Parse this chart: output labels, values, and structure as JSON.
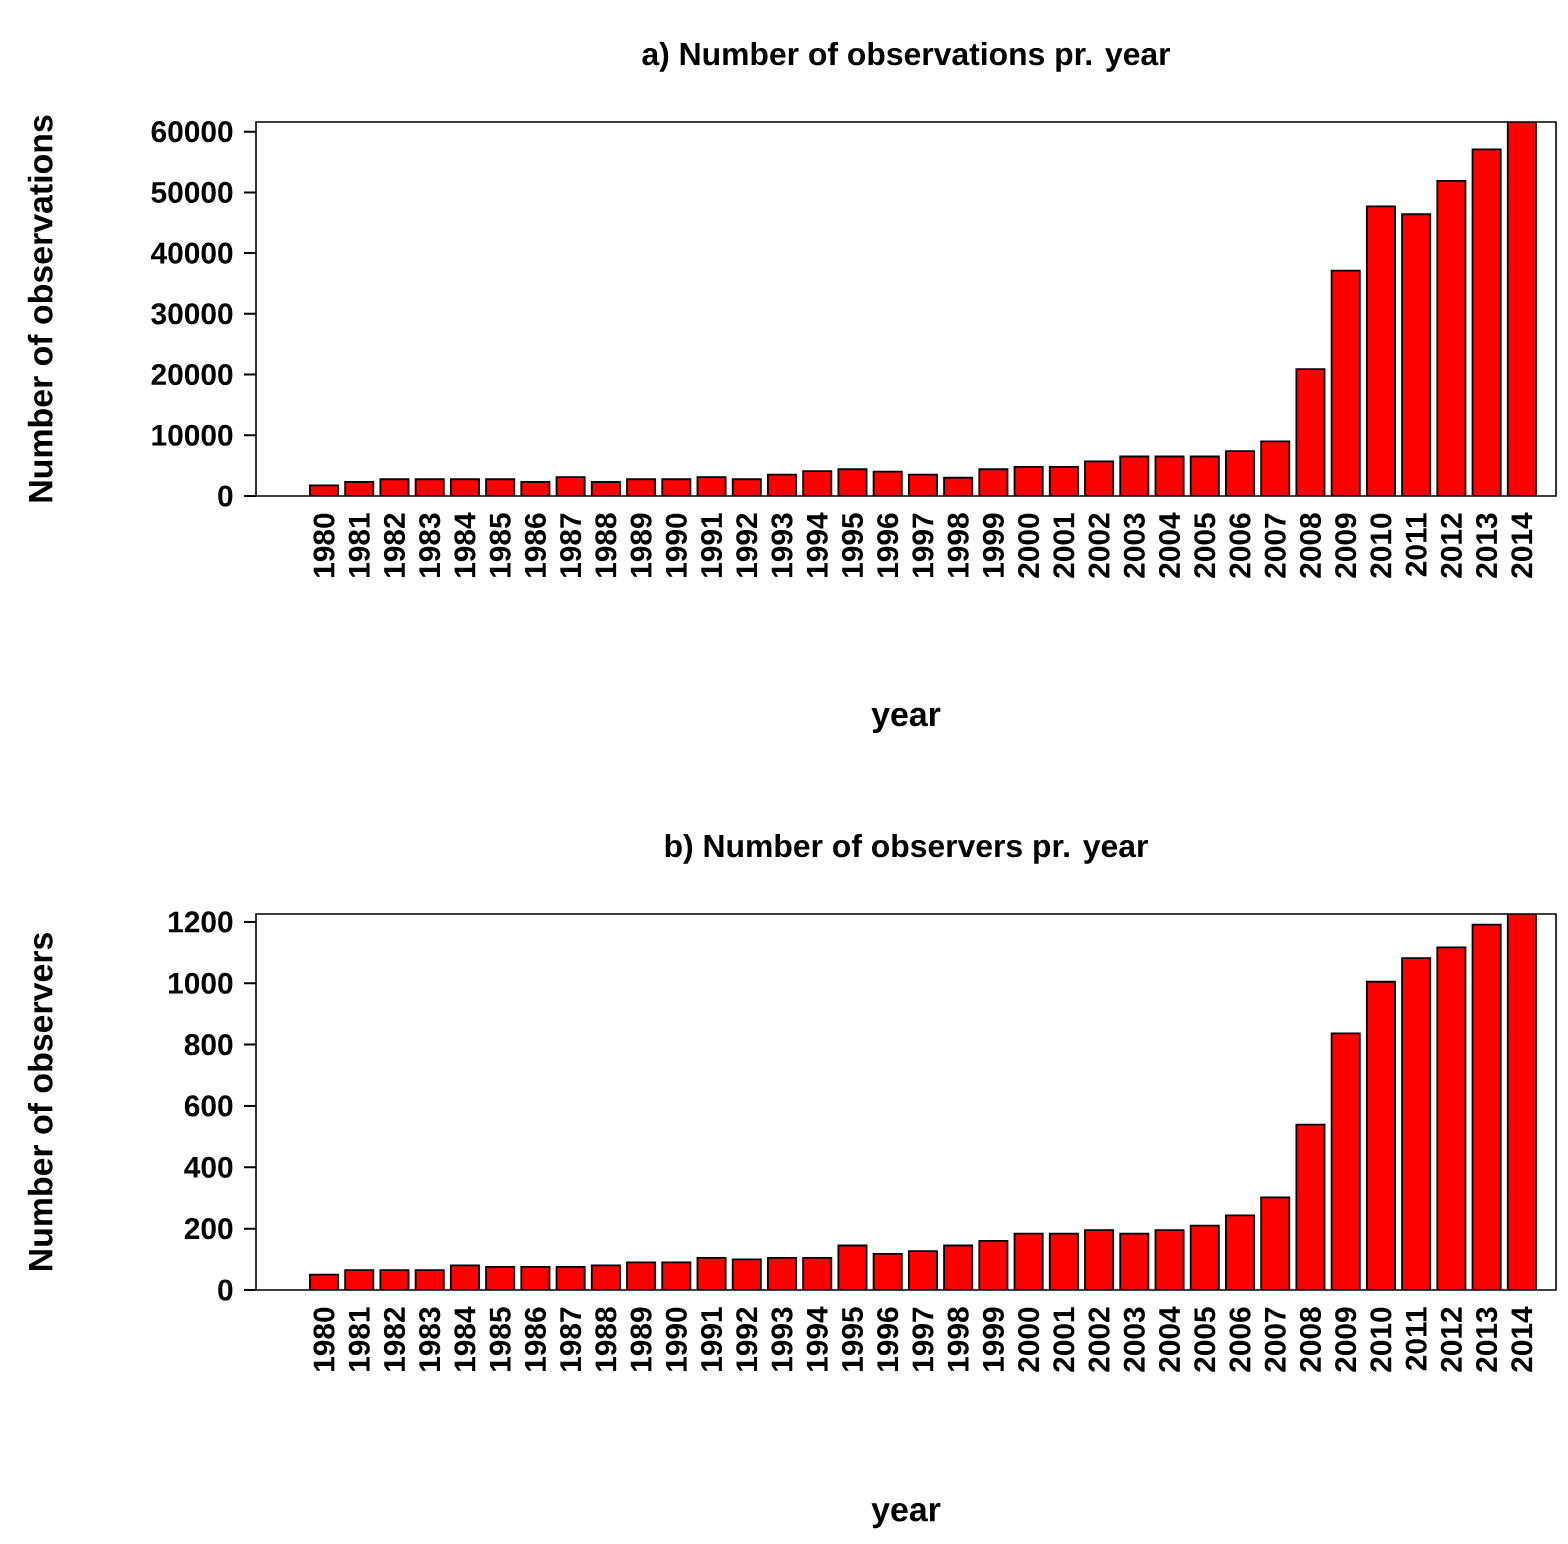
{
  "chart_data": [
    {
      "type": "bar",
      "title": "a)  Number of observations pr. year",
      "xlabel": "year",
      "ylabel": "Number of observations",
      "color": "#ff0000",
      "categories": [
        "1980",
        "1981",
        "1982",
        "1983",
        "1984",
        "1985",
        "1986",
        "1987",
        "1988",
        "1989",
        "1990",
        "1991",
        "1992",
        "1993",
        "1994",
        "1995",
        "1996",
        "1997",
        "1998",
        "1999",
        "2000",
        "2001",
        "2002",
        "2003",
        "2004",
        "2005",
        "2006",
        "2007",
        "2008",
        "2009",
        "2010",
        "2011",
        "2012",
        "2013",
        "2014"
      ],
      "values": [
        1750,
        2300,
        2750,
        2750,
        2750,
        2750,
        2300,
        3100,
        2300,
        2750,
        2750,
        3100,
        2750,
        3500,
        4100,
        4400,
        4000,
        3500,
        3000,
        4400,
        4800,
        4800,
        5700,
        6500,
        6500,
        6500,
        7400,
        9000,
        20900,
        37100,
        47700,
        46400,
        51900,
        57100,
        61600
      ],
      "ylim": [
        0,
        61600
      ],
      "yticks": [
        0,
        10000,
        20000,
        30000,
        40000,
        50000,
        60000
      ]
    },
    {
      "type": "bar",
      "title": "b)  Number of observers pr. year",
      "xlabel": "year",
      "ylabel": "Number of observers",
      "color": "#ff0000",
      "categories": [
        "1980",
        "1981",
        "1982",
        "1983",
        "1984",
        "1985",
        "1986",
        "1987",
        "1988",
        "1989",
        "1990",
        "1991",
        "1992",
        "1993",
        "1994",
        "1995",
        "1996",
        "1997",
        "1998",
        "1999",
        "2000",
        "2001",
        "2002",
        "2003",
        "2004",
        "2005",
        "2006",
        "2007",
        "2008",
        "2009",
        "2010",
        "2011",
        "2012",
        "2013",
        "2014"
      ],
      "values": [
        50,
        65,
        65,
        65,
        80,
        75,
        75,
        75,
        80,
        90,
        90,
        105,
        100,
        105,
        105,
        145,
        118,
        127,
        145,
        160,
        184,
        184,
        195,
        184,
        195,
        210,
        243,
        302,
        539,
        837,
        1005,
        1082,
        1117,
        1191,
        1226
      ],
      "ylim": [
        0,
        1226
      ],
      "yticks": [
        0,
        200,
        400,
        600,
        800,
        1000,
        1200
      ]
    }
  ]
}
